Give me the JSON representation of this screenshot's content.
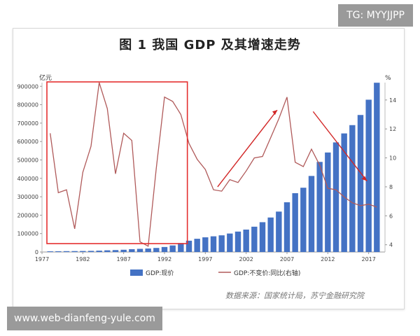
{
  "header": {
    "title": "图 1  我国 GDP 及其增速走势"
  },
  "watermark": {
    "tag": "TG: MYYJJPP",
    "url": "www.web-dianfeng-yule.com"
  },
  "source": "数据来源：国家统计局，苏宁金融研究院",
  "colors": {
    "bar": "#4472c4",
    "line": "#b05a5a",
    "box": "#e53030",
    "arrow": "#d22626"
  },
  "chart_data": {
    "type": "bar",
    "title": "图 1  我国 GDP 及其增速走势",
    "left_unit": "亿元",
    "right_unit": "%",
    "x": [
      1978,
      1979,
      1980,
      1981,
      1982,
      1983,
      1984,
      1985,
      1986,
      1987,
      1988,
      1989,
      1990,
      1991,
      1992,
      1993,
      1994,
      1995,
      1996,
      1997,
      1998,
      1999,
      2000,
      2001,
      2002,
      2003,
      2004,
      2005,
      2006,
      2007,
      2008,
      2009,
      2010,
      2011,
      2012,
      2013,
      2014,
      2015,
      2016,
      2017,
      2018
    ],
    "x_ticks": [
      "1977",
      "1982",
      "1987",
      "1992",
      "1997",
      "2002",
      "2007",
      "2012",
      "2017"
    ],
    "ylim": [
      0,
      920000
    ],
    "y_ticks": [
      "0",
      "100000",
      "200000",
      "300000",
      "400000",
      "500000",
      "600000",
      "700000",
      "800000",
      "900000"
    ],
    "y2lim": [
      3.5,
      15.2
    ],
    "y2_ticks": [
      "4",
      "6",
      "8",
      "10",
      "12",
      "14"
    ],
    "series": [
      {
        "name": "GDP:现价",
        "type": "bar",
        "values": [
          3679,
          4101,
          4588,
          4936,
          5373,
          6021,
          7279,
          9099,
          10376,
          12175,
          15180,
          17180,
          18873,
          22006,
          27195,
          35673,
          48638,
          61340,
          71814,
          79715,
          85196,
          90564,
          100280,
          110863,
          121717,
          137422,
          161840,
          187319,
          219439,
          270232,
          319516,
          349081,
          413030,
          489301,
          540367,
          595244,
          643974,
          689052,
          744127,
          827122,
          919281
        ]
      },
      {
        "name": "GDP:不变价:同比(右轴)",
        "type": "line",
        "values": [
          11.7,
          7.6,
          7.8,
          5.1,
          9.0,
          10.8,
          15.2,
          13.4,
          8.9,
          11.7,
          11.2,
          4.2,
          3.9,
          9.3,
          14.2,
          13.9,
          13.0,
          11.0,
          9.9,
          9.2,
          7.8,
          7.7,
          8.5,
          8.3,
          9.1,
          10.0,
          10.1,
          11.4,
          12.7,
          14.2,
          9.7,
          9.4,
          10.6,
          9.5,
          7.9,
          7.8,
          7.3,
          6.9,
          6.7,
          6.8,
          6.6
        ]
      }
    ],
    "legend": "bottom",
    "annotations": [
      "box-1978-1994",
      "arrow-rising-1998-2007",
      "arrow-falling-2007-2016"
    ]
  }
}
